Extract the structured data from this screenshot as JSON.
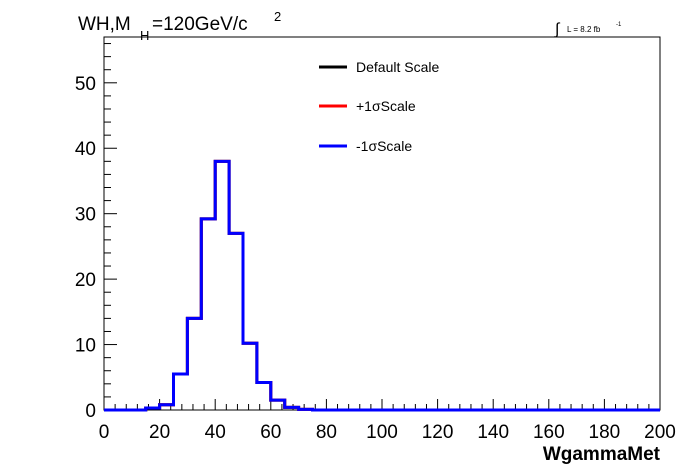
{
  "chart_data": {
    "type": "line",
    "title": "",
    "xlabel": "WgammaMet",
    "ylabel": "",
    "xlim": [
      0,
      200
    ],
    "ylim": [
      0,
      57
    ],
    "grid": false,
    "legend_placement": "top-center",
    "x_ticks": [
      "0",
      "20",
      "40",
      "60",
      "80",
      "100",
      "120",
      "140",
      "160",
      "180",
      "200"
    ],
    "y_ticks": [
      "0",
      "10",
      "20",
      "30",
      "40",
      "50"
    ],
    "annotation": {
      "process": "WH,M",
      "subscript": "H",
      "mass": "=120GeV/c",
      "power": "2",
      "lumi_integral": "∫",
      "lumi_text": "L = 8.2 fb",
      "lumi_power": "-1"
    },
    "bin_edges": [
      0,
      5,
      10,
      15,
      20,
      25,
      30,
      35,
      40,
      45,
      50,
      55,
      60,
      65,
      70,
      75,
      80,
      85,
      90,
      95,
      100,
      105,
      110,
      115,
      120,
      125,
      130,
      135,
      140,
      145,
      150,
      155,
      160,
      165,
      170,
      175,
      180,
      185,
      190,
      195,
      200
    ],
    "series": [
      {
        "name": "Default Scale",
        "color": "#000000",
        "values": [
          0,
          0,
          0,
          0.3,
          0.8,
          5.5,
          14,
          29.2,
          38,
          27,
          10.2,
          4.2,
          1.5,
          0.4,
          0.1,
          0,
          0,
          0,
          0,
          0,
          0,
          0,
          0,
          0,
          0,
          0,
          0,
          0,
          0,
          0,
          0,
          0,
          0,
          0,
          0,
          0,
          0,
          0,
          0,
          0
        ]
      },
      {
        "name": "+1σScale",
        "color": "#ff0000",
        "values": [
          0,
          0,
          0,
          0.3,
          0.8,
          5.5,
          14,
          29.2,
          38,
          27,
          10.2,
          4.2,
          1.5,
          0.4,
          0.1,
          0,
          0,
          0,
          0,
          0,
          0,
          0,
          0,
          0,
          0,
          0,
          0,
          0,
          0,
          0,
          0,
          0,
          0,
          0,
          0,
          0,
          0,
          0,
          0,
          0
        ]
      },
      {
        "name": "-1σScale",
        "color": "#0000ff",
        "values": [
          0,
          0,
          0,
          0.3,
          0.8,
          5.5,
          14,
          29.2,
          38,
          27,
          10.2,
          4.2,
          1.5,
          0.4,
          0.1,
          0,
          0,
          0,
          0,
          0,
          0,
          0,
          0,
          0,
          0,
          0,
          0,
          0,
          0,
          0,
          0,
          0,
          0,
          0,
          0,
          0,
          0,
          0,
          0,
          0
        ]
      }
    ]
  }
}
